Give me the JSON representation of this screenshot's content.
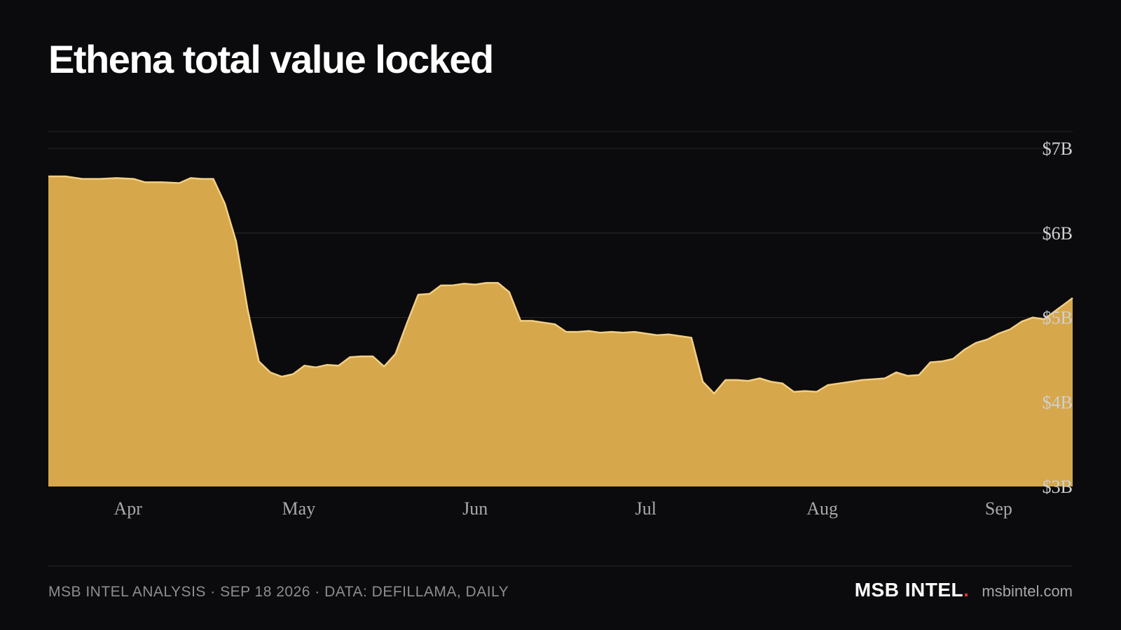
{
  "title": "Ethena total value locked",
  "colors": {
    "background": "#0b0b0d",
    "area_fill": "#d6a74b",
    "area_stroke": "#f3cf83",
    "grid": "#2a2a2e",
    "brand_dot": "#d63a2f"
  },
  "chart_data": {
    "type": "area",
    "title": "Ethena total value locked",
    "xlabel": "",
    "ylabel": "",
    "x_ticks": [
      "Apr",
      "May",
      "Jun",
      "Jul",
      "Aug",
      "Sep"
    ],
    "y_ticks": [
      "$7B",
      "$6B",
      "$5B",
      "$4B",
      "$3B"
    ],
    "y_tick_values": [
      7,
      6,
      5,
      4,
      3
    ],
    "ylim": [
      3,
      7.2
    ],
    "grid": true,
    "x_range": [
      "2026-03-21",
      "2026-09-17"
    ],
    "series": [
      {
        "values_unit": "USD billions",
        "points": [
          [
            "2026-03-21",
            6.67
          ],
          [
            "2026-03-24",
            6.67
          ],
          [
            "2026-03-27",
            6.64
          ],
          [
            "2026-03-30",
            6.64
          ],
          [
            "2026-04-02",
            6.65
          ],
          [
            "2026-04-05",
            6.64
          ],
          [
            "2026-04-07",
            6.6
          ],
          [
            "2026-04-10",
            6.6
          ],
          [
            "2026-04-13",
            6.59
          ],
          [
            "2026-04-15",
            6.65
          ],
          [
            "2026-04-17",
            6.64
          ],
          [
            "2026-04-19",
            6.64
          ],
          [
            "2026-04-21",
            6.35
          ],
          [
            "2026-04-23",
            5.9
          ],
          [
            "2026-04-25",
            5.1
          ],
          [
            "2026-04-27",
            4.48
          ],
          [
            "2026-04-29",
            4.35
          ],
          [
            "2026-05-01",
            4.3
          ],
          [
            "2026-05-03",
            4.33
          ],
          [
            "2026-05-05",
            4.43
          ],
          [
            "2026-05-07",
            4.41
          ],
          [
            "2026-05-09",
            4.44
          ],
          [
            "2026-05-11",
            4.43
          ],
          [
            "2026-05-13",
            4.53
          ],
          [
            "2026-05-15",
            4.54
          ],
          [
            "2026-05-17",
            4.54
          ],
          [
            "2026-05-19",
            4.42
          ],
          [
            "2026-05-21",
            4.57
          ],
          [
            "2026-05-23",
            4.93
          ],
          [
            "2026-05-25",
            5.27
          ],
          [
            "2026-05-27",
            5.28
          ],
          [
            "2026-05-29",
            5.38
          ],
          [
            "2026-05-31",
            5.38
          ],
          [
            "2026-06-02",
            5.4
          ],
          [
            "2026-06-04",
            5.39
          ],
          [
            "2026-06-06",
            5.41
          ],
          [
            "2026-06-08",
            5.41
          ],
          [
            "2026-06-10",
            5.3
          ],
          [
            "2026-06-12",
            4.96
          ],
          [
            "2026-06-14",
            4.96
          ],
          [
            "2026-06-16",
            4.94
          ],
          [
            "2026-06-18",
            4.92
          ],
          [
            "2026-06-20",
            4.83
          ],
          [
            "2026-06-22",
            4.83
          ],
          [
            "2026-06-24",
            4.84
          ],
          [
            "2026-06-26",
            4.82
          ],
          [
            "2026-06-28",
            4.83
          ],
          [
            "2026-06-30",
            4.82
          ],
          [
            "2026-07-02",
            4.83
          ],
          [
            "2026-07-04",
            4.81
          ],
          [
            "2026-07-06",
            4.79
          ],
          [
            "2026-07-08",
            4.8
          ],
          [
            "2026-07-10",
            4.78
          ],
          [
            "2026-07-12",
            4.76
          ],
          [
            "2026-07-14",
            4.24
          ],
          [
            "2026-07-16",
            4.1
          ],
          [
            "2026-07-18",
            4.26
          ],
          [
            "2026-07-20",
            4.26
          ],
          [
            "2026-07-22",
            4.25
          ],
          [
            "2026-07-24",
            4.28
          ],
          [
            "2026-07-26",
            4.24
          ],
          [
            "2026-07-28",
            4.22
          ],
          [
            "2026-07-30",
            4.12
          ],
          [
            "2026-08-01",
            4.13
          ],
          [
            "2026-08-03",
            4.12
          ],
          [
            "2026-08-05",
            4.2
          ],
          [
            "2026-08-07",
            4.22
          ],
          [
            "2026-08-09",
            4.24
          ],
          [
            "2026-08-11",
            4.26
          ],
          [
            "2026-08-13",
            4.27
          ],
          [
            "2026-08-15",
            4.28
          ],
          [
            "2026-08-17",
            4.35
          ],
          [
            "2026-08-19",
            4.31
          ],
          [
            "2026-08-21",
            4.32
          ],
          [
            "2026-08-23",
            4.47
          ],
          [
            "2026-08-25",
            4.48
          ],
          [
            "2026-08-27",
            4.51
          ],
          [
            "2026-08-29",
            4.62
          ],
          [
            "2026-08-31",
            4.7
          ],
          [
            "2026-09-02",
            4.74
          ],
          [
            "2026-09-04",
            4.81
          ],
          [
            "2026-09-06",
            4.86
          ],
          [
            "2026-09-08",
            4.95
          ],
          [
            "2026-09-10",
            5.0
          ],
          [
            "2026-09-12",
            4.98
          ],
          [
            "2026-09-14",
            5.08
          ],
          [
            "2026-09-17",
            5.23
          ]
        ]
      }
    ]
  },
  "footer": {
    "left": "MSB INTEL ANALYSIS · SEP 18 2026 · DATA: DEFILLAMA, DAILY",
    "brand": "MSB INTEL",
    "brand_dot": ".",
    "site": "msbintel.com"
  }
}
